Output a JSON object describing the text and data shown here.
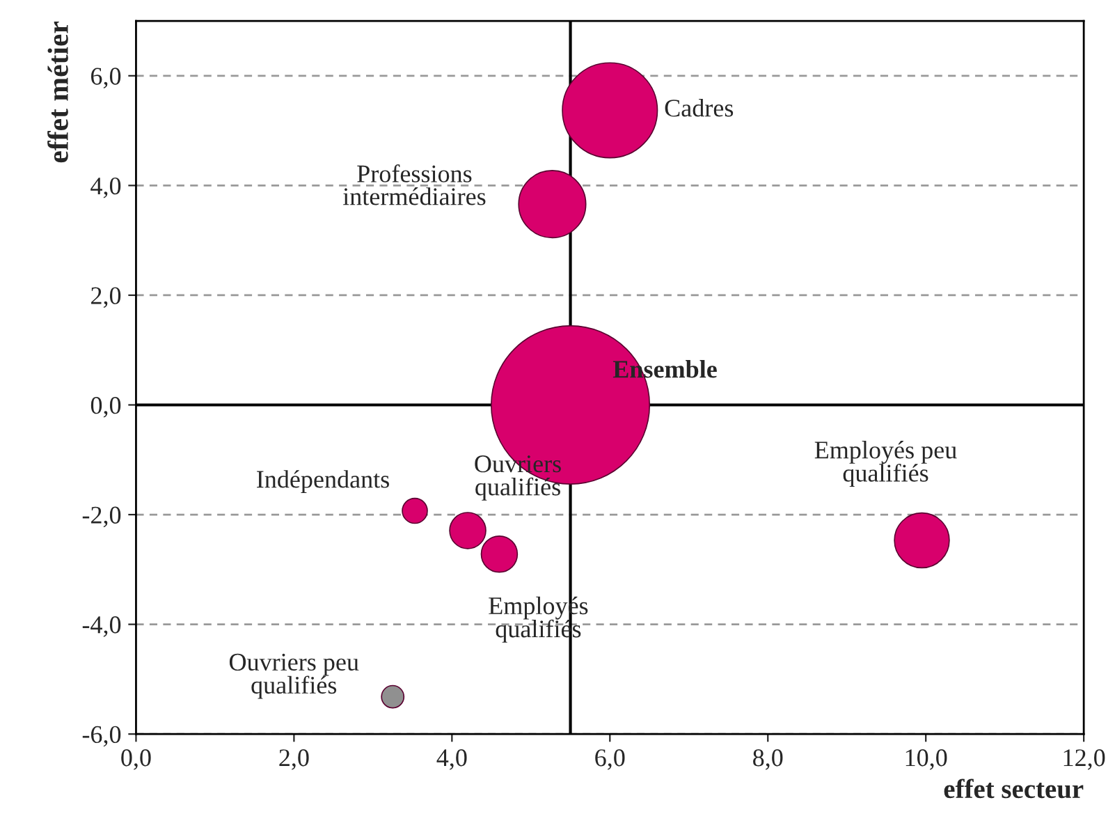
{
  "chart_data": {
    "type": "bubble",
    "xlabel": "effet secteur",
    "ylabel": "effet métier",
    "x": [
      6.0,
      5.27,
      5.5,
      3.53,
      4.2,
      4.6,
      9.95,
      3.25
    ],
    "values": [
      5.37,
      3.66,
      0.0,
      -1.93,
      -2.29,
      -2.72,
      -2.47,
      -5.32
    ],
    "sizes": [
      0.36,
      0.18,
      1,
      0.025,
      0.052,
      0.052,
      0.12,
      0.02
    ],
    "colors": [
      "#d8006c",
      "#d8006c",
      "#d8006c",
      "#d8006c",
      "#d8006c",
      "#d8006c",
      "#d8006c",
      "#909090"
    ],
    "annotations": [
      {
        "text": "Cadres",
        "x": 6.0,
        "y": 5.37
      },
      {
        "text": "Professions\nintermédiaires",
        "x": 5.27,
        "y": 3.66
      },
      {
        "text": "Ensemble",
        "x": 5.5,
        "y": 0.0
      },
      {
        "text": "Indépendants",
        "x": 3.53,
        "y": -1.93
      },
      {
        "text": "Ouvriers\nqualifiés",
        "x": 4.2,
        "y": -2.29
      },
      {
        "text": "Employés\nqualifiés",
        "x": 4.6,
        "y": -2.72
      },
      {
        "text": "Employés peu\nqualifiés",
        "x": 9.95,
        "y": -2.47
      },
      {
        "text": "Ouvriers peu\nqualifiés",
        "x": 3.25,
        "y": -5.32
      }
    ],
    "ref_lines": [
      {
        "axis": "x",
        "value": 5.5,
        "color": "#000000"
      },
      {
        "axis": "y",
        "value": 0,
        "color": "#000000"
      }
    ],
    "xlim": [
      0,
      12
    ],
    "ylim": [
      -6,
      7
    ],
    "xticks": [
      {
        "value": 0,
        "label": "0,0"
      },
      {
        "value": 2,
        "label": "2,0"
      },
      {
        "value": 4,
        "label": "4,0"
      },
      {
        "value": 6,
        "label": "6,0"
      },
      {
        "value": 8,
        "label": "8,0"
      },
      {
        "value": 10,
        "label": "10,0"
      },
      {
        "value": 12,
        "label": "12,0"
      }
    ],
    "yticks": [
      {
        "value": -6,
        "label": "-6,0"
      },
      {
        "value": -4,
        "label": "-4,0"
      },
      {
        "value": -2,
        "label": "-2,0"
      },
      {
        "value": 0,
        "label": "0,0"
      },
      {
        "value": 2,
        "label": "2,0"
      },
      {
        "value": 4,
        "label": "4,0"
      },
      {
        "value": 6,
        "label": "6,0"
      }
    ],
    "grid": "y",
    "legend": false
  }
}
